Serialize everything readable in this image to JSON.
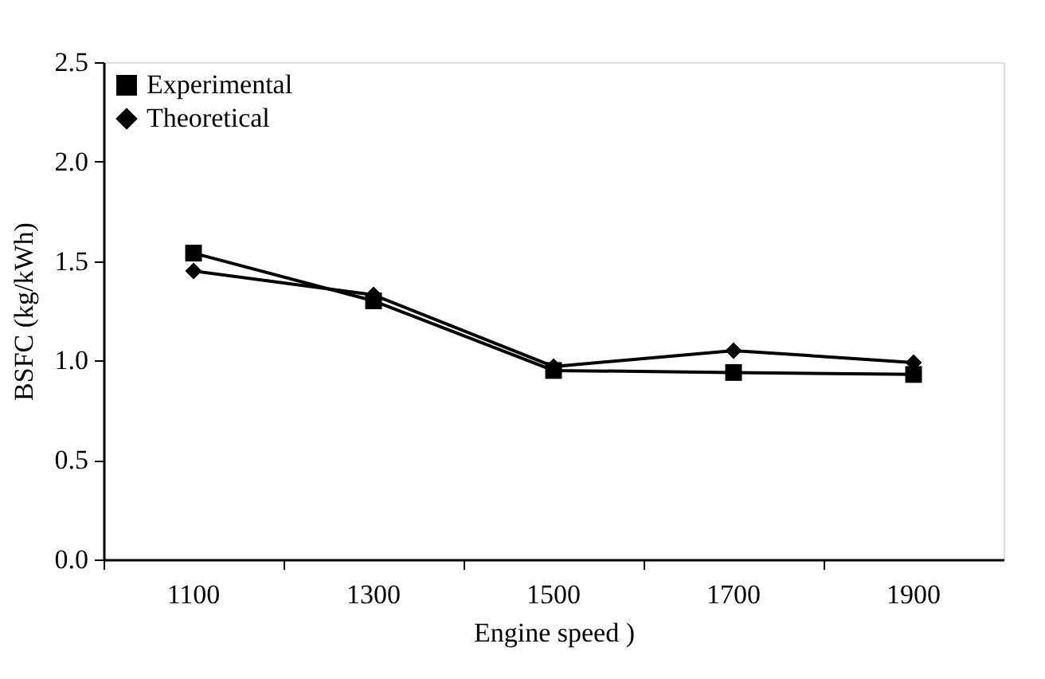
{
  "chart_data": {
    "type": "line",
    "xlabel": "Engine speed )",
    "ylabel": "BSFC (kg/kWh)",
    "categories": [
      "1100",
      "1300",
      "1500",
      "1700",
      "1900"
    ],
    "series": [
      {
        "name": "Experimental",
        "color": "#000000",
        "marker": "square",
        "values": [
          1.54,
          1.3,
          0.95,
          0.94,
          0.93
        ]
      },
      {
        "name": "Theoretical",
        "color": "#000000",
        "marker": "diamond",
        "values": [
          1.45,
          1.33,
          0.97,
          1.05,
          0.99
        ]
      }
    ],
    "ylim": [
      0,
      2.5
    ],
    "yticks": [
      {
        "value": 0,
        "label": "0.0"
      },
      0.5,
      {
        "value": 1,
        "label": "1.0"
      },
      1.5,
      {
        "value": 2,
        "label": "2.0"
      },
      2.5
    ],
    "grid": false,
    "legend": "top left",
    "line_style": "solid"
  }
}
